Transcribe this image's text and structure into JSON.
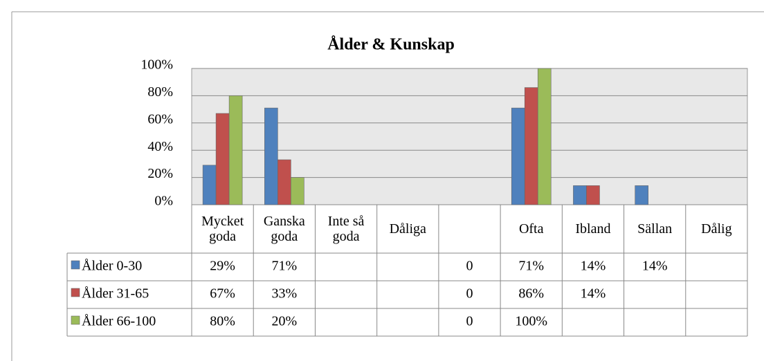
{
  "chart_data": {
    "type": "bar",
    "title": "Ålder & Kunskap",
    "categories": [
      "Mycket goda",
      "Ganska goda",
      "Inte så goda",
      "Dåliga",
      null,
      "Ofta",
      "Ibland",
      "Sällan",
      "Dålig"
    ],
    "series": [
      {
        "name": "Ålder 0-30",
        "color": "#4f81bd",
        "values": [
          29,
          71,
          null,
          null,
          0,
          71,
          14,
          14,
          null
        ],
        "value_labels": [
          "29%",
          "71%",
          null,
          null,
          "0",
          "71%",
          "14%",
          "14%",
          null
        ]
      },
      {
        "name": "Ålder 31-65",
        "color": "#c0504d",
        "values": [
          67,
          33,
          null,
          null,
          0,
          86,
          14,
          null,
          null
        ],
        "value_labels": [
          "67%",
          "33%",
          null,
          null,
          "0",
          "86%",
          "14%",
          null,
          null
        ]
      },
      {
        "name": "Ålder 66-100",
        "color": "#9bbb59",
        "values": [
          80,
          20,
          null,
          null,
          0,
          100,
          null,
          null,
          null
        ],
        "value_labels": [
          "80%",
          "20%",
          null,
          null,
          "0",
          "100%",
          null,
          null,
          null
        ]
      }
    ],
    "ylim": [
      0,
      100
    ],
    "yticks": [
      {
        "value": 0,
        "label": "0%"
      },
      {
        "value": 20,
        "label": "20%"
      },
      {
        "value": 40,
        "label": "40%"
      },
      {
        "value": 60,
        "label": "60%"
      },
      {
        "value": 80,
        "label": "80%"
      },
      {
        "value": 100,
        "label": "100%"
      }
    ],
    "grid": true,
    "data_table": true
  }
}
